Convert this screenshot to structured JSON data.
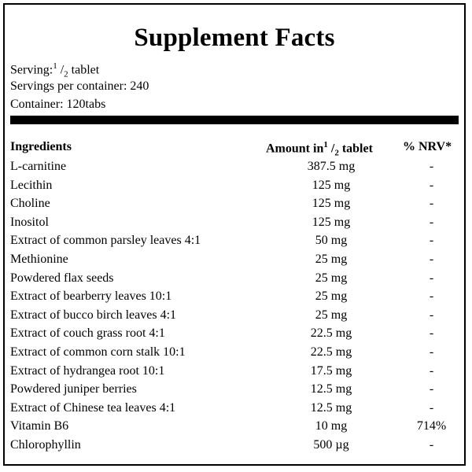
{
  "title": "Supplement Facts",
  "serving": {
    "label": "Serving:",
    "numerator": "1",
    "slash": " /",
    "denominator": "2",
    "unit": " tablet"
  },
  "servings_per_container": "Servings per container: 240",
  "container": "Container: 120tabs",
  "headers": {
    "ingredients": "Ingredients",
    "amount_prefix": "Amount in",
    "amount_numerator": "1",
    "amount_slash": " /",
    "amount_denominator": "2",
    "amount_suffix": " tablet",
    "nrv": "% NRV*"
  },
  "rows": [
    {
      "name": "L-carnitine",
      "amount": "387.5 mg",
      "nrv": "-"
    },
    {
      "name": "Lecithin",
      "amount": "125 mg",
      "nrv": "-"
    },
    {
      "name": "Choline",
      "amount": "125 mg",
      "nrv": "-"
    },
    {
      "name": "Inositol",
      "amount": "125 mg",
      "nrv": "-"
    },
    {
      "name": "Extract of common parsley leaves 4:1",
      "amount": "50 mg",
      "nrv": "-"
    },
    {
      "name": "Methionine",
      "amount": "25 mg",
      "nrv": "-"
    },
    {
      "name": "Powdered flax seeds",
      "amount": "25 mg",
      "nrv": "-"
    },
    {
      "name": "Extract of bearberry leaves 10:1",
      "amount": "25 mg",
      "nrv": "-"
    },
    {
      "name": "Extract of bucco birch leaves 4:1",
      "amount": "25 mg",
      "nrv": "-"
    },
    {
      "name": "Extract of couch grass root 4:1",
      "amount": "22.5 mg",
      "nrv": "-"
    },
    {
      "name": "Extract of common corn stalk 10:1",
      "amount": "22.5 mg",
      "nrv": "-"
    },
    {
      "name": "Extract of hydrangea root 10:1",
      "amount": "17.5 mg",
      "nrv": "-"
    },
    {
      "name": "Powdered juniper berries",
      "amount": "12.5 mg",
      "nrv": "-"
    },
    {
      "name": "Extract of Chinese tea leaves 4:1",
      "amount": "12.5 mg",
      "nrv": "-"
    },
    {
      "name": "Vitamin B6",
      "amount": "10 mg",
      "nrv": "714%"
    },
    {
      "name": "Chlorophyllin",
      "amount": "500 µg",
      "nrv": "-"
    }
  ]
}
